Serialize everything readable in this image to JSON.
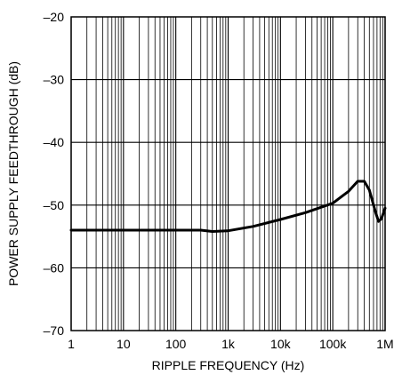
{
  "chart_data": {
    "type": "line",
    "title": "",
    "xlabel": "RIPPLE FREQUENCY (Hz)",
    "ylabel": "POWER SUPPLY FEEDTHROUGH (dB)",
    "x_scale": "log",
    "xlim": [
      1,
      1000000
    ],
    "ylim": [
      -70,
      -20
    ],
    "grid": true,
    "x_ticks": [
      1,
      10,
      100,
      1000,
      10000,
      100000,
      1000000
    ],
    "x_tick_labels": [
      "1",
      "10",
      "100",
      "1k",
      "10k",
      "100k",
      "1M"
    ],
    "y_ticks": [
      -70,
      -60,
      -50,
      -40,
      -30,
      -20
    ],
    "y_tick_labels": [
      "–70",
      "–60",
      "–50",
      "–40",
      "–30",
      "–20"
    ],
    "series": [
      {
        "points": [
          [
            1,
            -54
          ],
          [
            10,
            -54
          ],
          [
            100,
            -54
          ],
          [
            300,
            -54
          ],
          [
            500,
            -54.2
          ],
          [
            1000,
            -54.1
          ],
          [
            3000,
            -53.4
          ],
          [
            10000,
            -52.3
          ],
          [
            30000,
            -51.2
          ],
          [
            100000,
            -49.7
          ],
          [
            200000,
            -47.8
          ],
          [
            300000,
            -46.2
          ],
          [
            400000,
            -46.2
          ],
          [
            500000,
            -47.6
          ],
          [
            650000,
            -51
          ],
          [
            750000,
            -52.6
          ],
          [
            850000,
            -52.2
          ],
          [
            1000000,
            -50.5
          ]
        ]
      }
    ]
  }
}
